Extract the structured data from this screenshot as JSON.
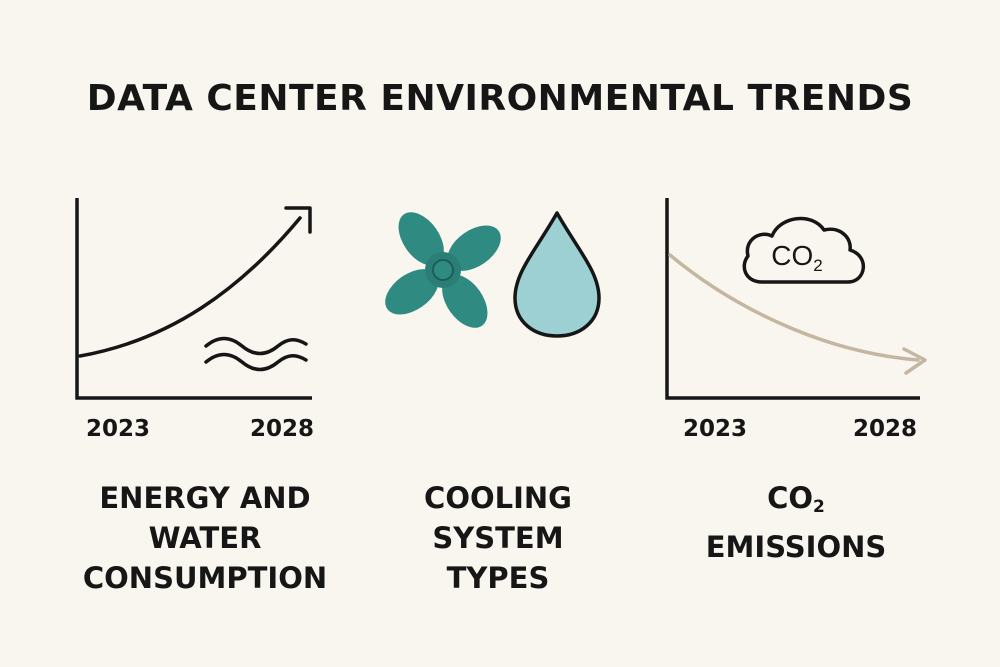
{
  "title": "DATA CENTER ENVIRONMENTAL TRENDS",
  "panels": {
    "energy": {
      "x_labels": [
        "2023",
        "2028"
      ],
      "caption_lines": [
        "ENERGY AND",
        "WATER",
        "CONSUMPTION"
      ],
      "icons": [
        "rising-arrow-icon",
        "water-waves-icon"
      ],
      "trend": "increasing"
    },
    "cooling": {
      "caption_lines": [
        "COOLING",
        "SYSTEM",
        "TYPES"
      ],
      "icons": [
        "fan-icon",
        "water-drop-icon"
      ]
    },
    "emissions": {
      "x_labels": [
        "2023",
        "2028"
      ],
      "cloud_label": {
        "base": "CO",
        "subscript": "2"
      },
      "caption_lines": [
        {
          "base": "CO",
          "subscript": "2"
        },
        "EMISSIONS"
      ],
      "icons": [
        "co2-cloud-icon",
        "falling-arrow-icon"
      ],
      "trend": "decreasing"
    }
  },
  "colors": {
    "background": "#f9f6ef",
    "ink": "#161616",
    "fan": "#2f8b81",
    "drop": "#9dd0d3",
    "emissions_curve": "#c4b6a0"
  }
}
